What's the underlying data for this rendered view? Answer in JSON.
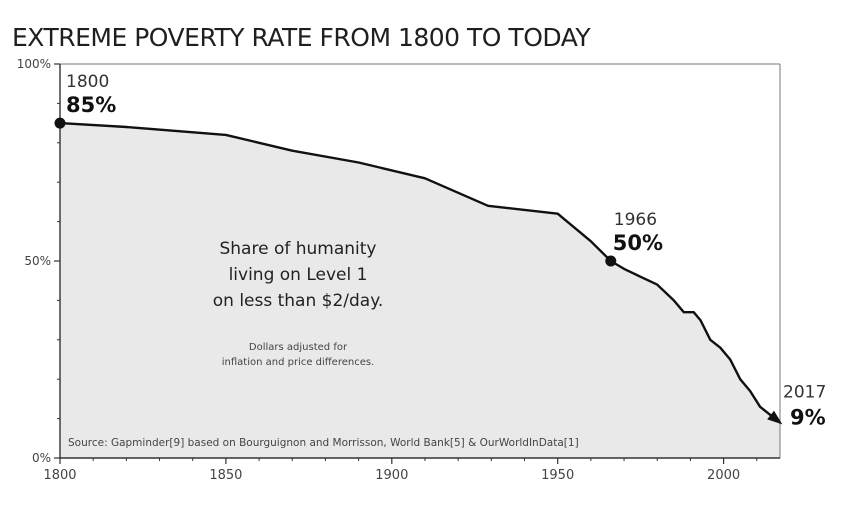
{
  "chart_data": {
    "type": "area",
    "title": "EXTREME POVERTY RATE FROM 1800 TO TODAY",
    "xlabel": "",
    "ylabel": "",
    "xlim": [
      1800,
      2017
    ],
    "ylim": [
      0,
      100
    ],
    "x_ticks": [
      {
        "value": 1800,
        "label": "1800"
      },
      {
        "value": 1850,
        "label": "1850"
      },
      {
        "value": 1900,
        "label": "1900"
      },
      {
        "value": 1950,
        "label": "1950"
      },
      {
        "value": 2000,
        "label": "2000"
      }
    ],
    "y_ticks": [
      {
        "value": 0,
        "label": "0%"
      },
      {
        "value": 50,
        "label": "50%"
      },
      {
        "value": 100,
        "label": "100%"
      }
    ],
    "grid": false,
    "series": [
      {
        "x": [
          1800,
          1820,
          1850,
          1870,
          1890,
          1910,
          1929,
          1950,
          1960,
          1966,
          1970,
          1975,
          1980,
          1985,
          1988,
          1991,
          1993,
          1996,
          1999,
          2002,
          2005,
          2008,
          2011,
          2014,
          2017
        ],
        "values": [
          85,
          84,
          82,
          78,
          75,
          71,
          64,
          62,
          55,
          50,
          48,
          46,
          44,
          40,
          37,
          37,
          35,
          30,
          28,
          25,
          20,
          17,
          13,
          11,
          9
        ]
      }
    ],
    "annotations": [
      {
        "x": 1800,
        "y": 85,
        "year": "1800",
        "value": "85%",
        "marker": "dot"
      },
      {
        "x": 1966,
        "y": 50,
        "year": "1966",
        "value": "50%",
        "marker": "dot"
      },
      {
        "x": 2017,
        "y": 9,
        "year": "2017",
        "value": "9%",
        "marker": "arrow"
      }
    ],
    "description_lines": [
      "Share of humanity",
      "living on Level 1",
      "on less than $2/day."
    ],
    "note_lines": [
      "Dollars adjusted for",
      "inflation and price differences."
    ],
    "source": "Source: Gapminder[9] based on Bourguignon and Morrisson, World Bank[5] & OurWorldInData[1]",
    "colors": {
      "area_fill": "#e9e9e9",
      "line": "#111111",
      "text": "#222222",
      "axis": "#333333"
    }
  }
}
